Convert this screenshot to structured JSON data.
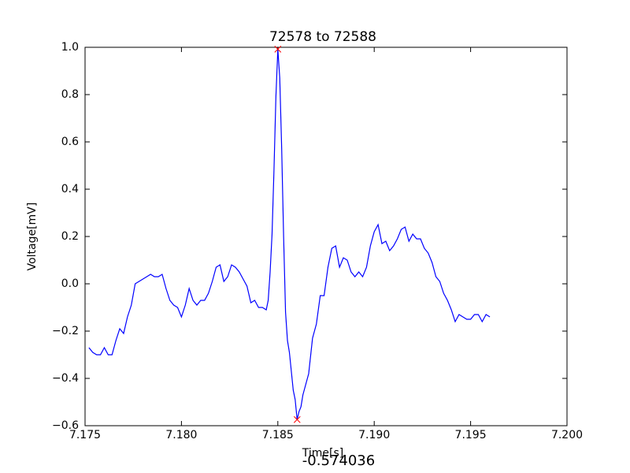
{
  "chart_data": {
    "type": "line",
    "title": "72578 to 72588",
    "xlabel": "Time[s]",
    "ylabel": "Voltage[mV]",
    "xlim": [
      7.175,
      7.2
    ],
    "ylim": [
      -0.6,
      1.0
    ],
    "xticks": [
      7.175,
      {
        "value": 7.18,
        "label": "7.180"
      },
      7.185,
      {
        "value": 7.19,
        "label": "7.190"
      },
      7.195,
      {
        "value": 7.2,
        "label": "7.200"
      }
    ],
    "yticks": [
      {
        "value": -0.6,
        "label": "−0.6"
      },
      {
        "value": -0.4,
        "label": "−0.4"
      },
      {
        "value": -0.2,
        "label": "−0.2"
      },
      {
        "value": 0,
        "label": "0.0"
      },
      {
        "value": 0.2,
        "label": "0.2"
      },
      {
        "value": 0.4,
        "label": "0.4"
      },
      {
        "value": 0.6,
        "label": "0.6"
      },
      {
        "value": 0.8,
        "label": "0.8"
      },
      {
        "value": 1,
        "label": "1.0"
      }
    ],
    "grid": false,
    "series": [
      {
        "color": "#0000ff",
        "x": [
          7.1752,
          7.1754,
          7.1756,
          7.1758,
          7.176,
          7.1762,
          7.1764,
          7.1766,
          7.1768,
          7.177,
          7.1772,
          7.1774,
          7.1776,
          7.1778,
          7.178,
          7.1782,
          7.1784,
          7.1786,
          7.1788,
          7.179,
          7.1792,
          7.1794,
          7.1796,
          7.1798,
          7.18,
          7.1802,
          7.1804,
          7.1806,
          7.1808,
          7.181,
          7.1812,
          7.1814,
          7.1816,
          7.1818,
          7.182,
          7.1822,
          7.1824,
          7.1826,
          7.1828,
          7.183,
          7.1832,
          7.1834,
          7.1836,
          7.1838,
          7.184,
          7.1842,
          7.1844,
          7.1845,
          7.1846,
          7.1847,
          7.1848,
          7.1849,
          7.185,
          7.1851,
          7.1852,
          7.1853,
          7.1854,
          7.1855,
          7.1856,
          7.1857,
          7.1858,
          7.1859,
          7.186,
          7.1861,
          7.1862,
          7.1863,
          7.1864,
          7.1866,
          7.1868,
          7.187,
          7.1872,
          7.1874,
          7.1876,
          7.1878,
          7.188,
          7.1882,
          7.1884,
          7.1886,
          7.1888,
          7.189,
          7.1892,
          7.1894,
          7.1896,
          7.1898,
          7.19,
          7.1902,
          7.1904,
          7.1906,
          7.1908,
          7.191,
          7.1912,
          7.1914,
          7.1916,
          7.1918,
          7.192,
          7.1922,
          7.1924,
          7.1926,
          7.1928,
          7.193,
          7.1932,
          7.1934,
          7.1936,
          7.1938,
          7.194,
          7.1942,
          7.1944,
          7.1946,
          7.1948,
          7.195,
          7.1952,
          7.1954,
          7.1956,
          7.1958,
          7.196
        ],
        "values": [
          -0.27,
          -0.29,
          -0.3,
          -0.3,
          -0.27,
          -0.3,
          -0.3,
          -0.24,
          -0.19,
          -0.21,
          -0.14,
          -0.09,
          0.0,
          0.01,
          0.02,
          0.03,
          0.04,
          0.03,
          0.03,
          0.04,
          -0.02,
          -0.07,
          -0.09,
          -0.1,
          -0.14,
          -0.09,
          -0.02,
          -0.07,
          -0.09,
          -0.07,
          -0.07,
          -0.04,
          0.01,
          0.07,
          0.08,
          0.01,
          0.03,
          0.08,
          0.07,
          0.05,
          0.02,
          -0.01,
          -0.08,
          -0.07,
          -0.1,
          -0.1,
          -0.11,
          -0.07,
          0.05,
          0.21,
          0.48,
          0.79,
          0.992126,
          0.87,
          0.57,
          0.2,
          -0.12,
          -0.24,
          -0.29,
          -0.37,
          -0.45,
          -0.49,
          -0.574036,
          -0.54,
          -0.52,
          -0.47,
          -0.44,
          -0.38,
          -0.23,
          -0.17,
          -0.05,
          -0.05,
          0.07,
          0.15,
          0.16,
          0.07,
          0.11,
          0.1,
          0.05,
          0.03,
          0.05,
          0.03,
          0.07,
          0.16,
          0.22,
          0.25,
          0.17,
          0.18,
          0.14,
          0.16,
          0.19,
          0.23,
          0.24,
          0.18,
          0.21,
          0.19,
          0.19,
          0.15,
          0.13,
          0.09,
          0.03,
          0.01,
          -0.04,
          -0.07,
          -0.11,
          -0.16,
          -0.13,
          -0.14,
          -0.15,
          -0.15,
          -0.13,
          -0.13,
          -0.16,
          -0.13,
          -0.14
        ]
      }
    ],
    "markers": {
      "color": "#ff0000",
      "x": [
        7.185,
        7.186
      ],
      "values": [
        0.992126,
        -0.574036
      ]
    }
  }
}
